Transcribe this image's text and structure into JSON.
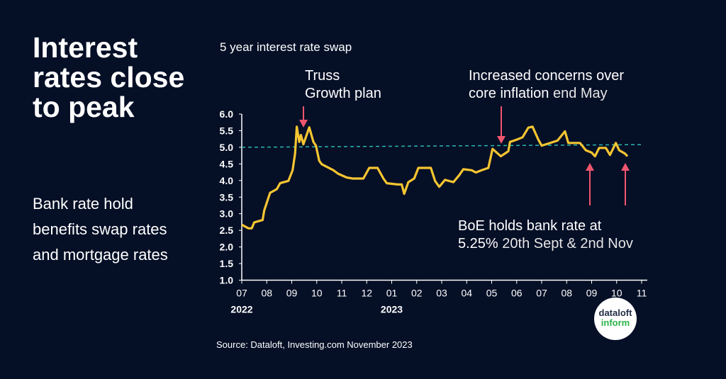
{
  "headline": "Interest rates close to peak",
  "subheadline": "Bank rate hold benefits swap rates and mortgage rates",
  "source": "Source: Dataloft, Investing.com November 2023",
  "logo": {
    "line1": "dataloft",
    "line2": "inform"
  },
  "annotations": {
    "truss": {
      "line1": "Truss",
      "line2": "Growth plan"
    },
    "may": {
      "line1": "Increased concerns over",
      "line2_bold": "core inflation",
      "line2_light": " end May"
    },
    "boe": {
      "line1": "BoE holds bank rate at",
      "line2_bold": "5.25%",
      "line2_light": " 20th Sept & 2nd Nov"
    }
  },
  "colors": {
    "background": "#050f26",
    "series": "#f5c531",
    "reference": "#2bb5ae",
    "arrows": "#f0566e"
  },
  "chart_data": {
    "type": "line",
    "title": "5 year interest rate swap",
    "xlabel": "",
    "ylabel": "",
    "ylim": [
      1.0,
      6.0
    ],
    "yticks": [
      "1.0",
      "1.5",
      "2.0",
      "2.5",
      "3.0",
      "3.5",
      "4.0",
      "4.5",
      "5.0",
      "5.5",
      "6.0"
    ],
    "xticks": [
      {
        "label": "07",
        "year": "2022"
      },
      {
        "label": "08"
      },
      {
        "label": "09"
      },
      {
        "label": "10"
      },
      {
        "label": "11"
      },
      {
        "label": "12"
      },
      {
        "label": "01",
        "year": "2023"
      },
      {
        "label": "02"
      },
      {
        "label": "03"
      },
      {
        "label": "04"
      },
      {
        "label": "05"
      },
      {
        "label": "06"
      },
      {
        "label": "07"
      },
      {
        "label": "08"
      },
      {
        "label": "09"
      },
      {
        "label": "10"
      },
      {
        "label": "11"
      }
    ],
    "xlim": [
      "2022-07-01",
      "2023-11-01"
    ],
    "grid": false,
    "series": [
      {
        "values": [
          [
            "2022-07-01",
            2.67
          ],
          [
            "2022-07-09",
            2.56
          ],
          [
            "2022-07-13",
            2.56
          ],
          [
            "2022-07-16",
            2.74
          ],
          [
            "2022-07-26",
            2.81
          ],
          [
            "2022-07-28",
            3.1
          ],
          [
            "2022-08-05",
            3.63
          ],
          [
            "2022-08-13",
            3.74
          ],
          [
            "2022-08-17",
            3.92
          ],
          [
            "2022-08-27",
            3.99
          ],
          [
            "2022-09-02",
            4.31
          ],
          [
            "2022-09-05",
            4.81
          ],
          [
            "2022-09-07",
            5.62
          ],
          [
            "2022-09-10",
            5.16
          ],
          [
            "2022-09-12",
            5.37
          ],
          [
            "2022-09-15",
            5.09
          ],
          [
            "2022-09-22",
            5.6
          ],
          [
            "2022-09-27",
            5.16
          ],
          [
            "2022-09-30",
            5.05
          ],
          [
            "2022-10-04",
            4.59
          ],
          [
            "2022-10-07",
            4.49
          ],
          [
            "2022-10-21",
            4.31
          ],
          [
            "2022-10-27",
            4.2
          ],
          [
            "2022-11-07",
            4.09
          ],
          [
            "2022-11-14",
            4.06
          ],
          [
            "2022-11-27",
            4.06
          ],
          [
            "2022-12-04",
            4.38
          ],
          [
            "2022-12-14",
            4.38
          ],
          [
            "2022-12-21",
            4.06
          ],
          [
            "2022-12-25",
            3.92
          ],
          [
            "2023-01-08",
            3.88
          ],
          [
            "2023-01-13",
            3.88
          ],
          [
            "2023-01-16",
            3.6
          ],
          [
            "2023-01-21",
            3.95
          ],
          [
            "2023-01-28",
            4.06
          ],
          [
            "2023-02-03",
            4.38
          ],
          [
            "2023-02-18",
            4.38
          ],
          [
            "2023-02-23",
            3.99
          ],
          [
            "2023-02-28",
            3.81
          ],
          [
            "2023-03-05",
            4.02
          ],
          [
            "2023-03-15",
            3.95
          ],
          [
            "2023-03-22",
            4.16
          ],
          [
            "2023-03-27",
            4.34
          ],
          [
            "2023-04-07",
            4.31
          ],
          [
            "2023-04-12",
            4.24
          ],
          [
            "2023-04-19",
            4.31
          ],
          [
            "2023-04-27",
            4.38
          ],
          [
            "2023-05-02",
            4.95
          ],
          [
            "2023-05-12",
            4.73
          ],
          [
            "2023-05-21",
            4.88
          ],
          [
            "2023-05-23",
            5.16
          ],
          [
            "2023-06-01",
            5.23
          ],
          [
            "2023-06-08",
            5.3
          ],
          [
            "2023-06-15",
            5.59
          ],
          [
            "2023-06-20",
            5.62
          ],
          [
            "2023-06-27",
            5.23
          ],
          [
            "2023-07-01",
            5.05
          ],
          [
            "2023-07-20",
            5.2
          ],
          [
            "2023-07-29",
            5.48
          ],
          [
            "2023-08-03",
            5.13
          ],
          [
            "2023-08-17",
            5.13
          ],
          [
            "2023-08-24",
            4.91
          ],
          [
            "2023-08-31",
            4.84
          ],
          [
            "2023-09-05",
            4.73
          ],
          [
            "2023-09-10",
            4.98
          ],
          [
            "2023-09-18",
            4.98
          ],
          [
            "2023-09-23",
            4.77
          ],
          [
            "2023-09-30",
            5.13
          ],
          [
            "2023-10-04",
            4.91
          ],
          [
            "2023-10-11",
            4.81
          ],
          [
            "2023-10-14",
            4.73
          ]
        ]
      }
    ],
    "reference_line": {
      "style": "dashed",
      "start": [
        "2022-07-01",
        5.0
      ],
      "end": [
        "2023-11-01",
        5.08
      ]
    }
  }
}
